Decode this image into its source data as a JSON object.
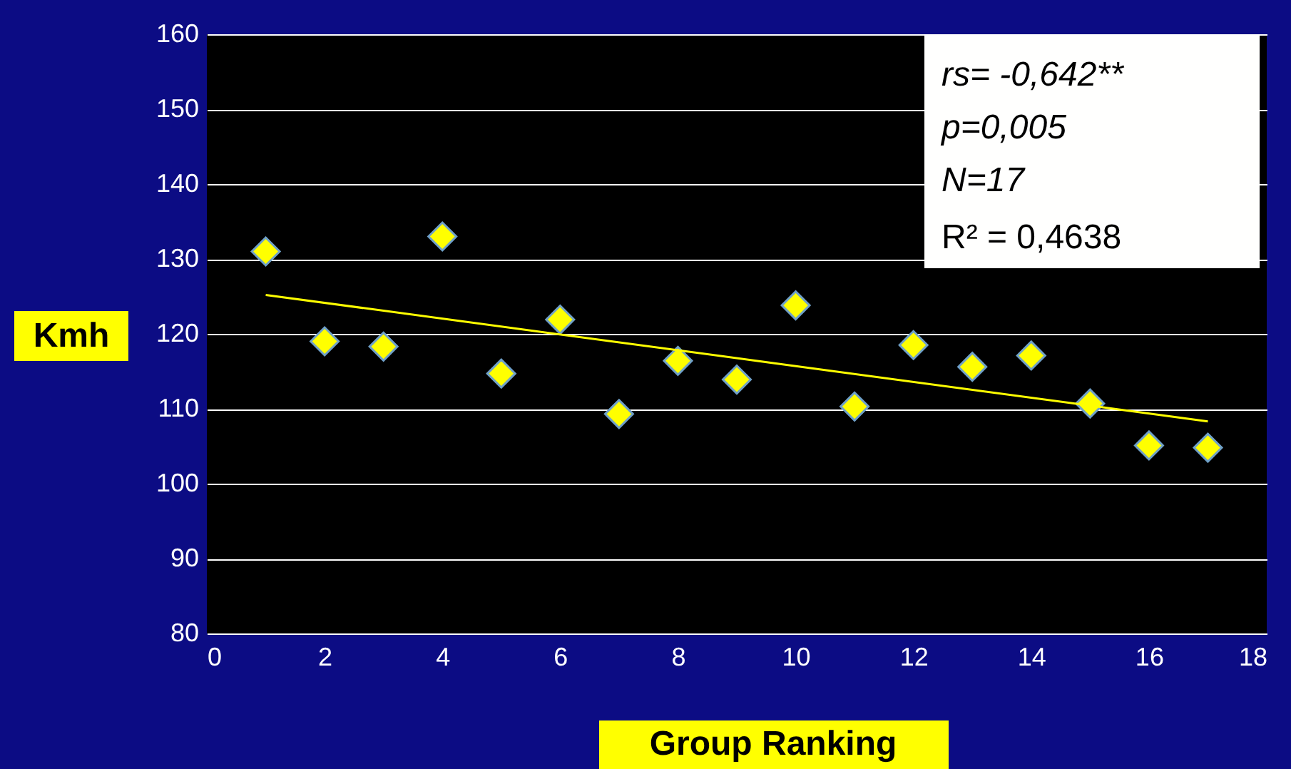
{
  "chart_data": {
    "type": "scatter",
    "xlabel": "Group Ranking",
    "ylabel": "Kmh",
    "x": [
      1,
      2,
      3,
      4,
      5,
      6,
      7,
      8,
      9,
      10,
      11,
      12,
      13,
      14,
      15,
      16,
      17
    ],
    "series": [
      {
        "type": "scatter",
        "color": "#ffff00",
        "marker": "diamond",
        "values": [
          131,
          119,
          118.3,
          133,
          114.7,
          121.9,
          109.3,
          116.4,
          113.9,
          123.8,
          110.3,
          118.5,
          115.6,
          117.1,
          110.7,
          105.1,
          104.8
        ]
      },
      {
        "type": "line",
        "color": "#ffff00",
        "x": [
          1,
          17
        ],
        "values": [
          125.2,
          108.3
        ]
      }
    ],
    "xlim": [
      0,
      18
    ],
    "xticks": [
      0,
      2,
      4,
      6,
      8,
      10,
      12,
      14,
      16,
      18
    ],
    "ylim": [
      80,
      160
    ],
    "yticks": [
      80,
      90,
      100,
      110,
      120,
      130,
      140,
      150,
      160
    ],
    "grid": "y",
    "annotations": [
      "rs= -0,642**",
      "p=0,005",
      "N=17",
      "R² = 0,4638"
    ]
  }
}
